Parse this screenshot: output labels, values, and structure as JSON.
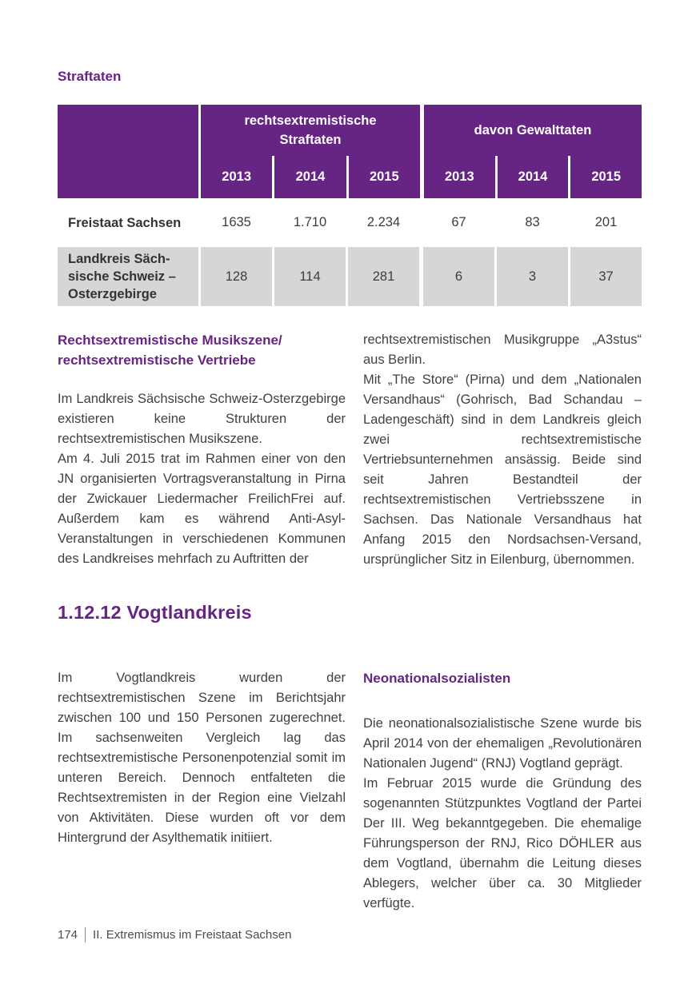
{
  "colors": {
    "accent_purple": "#662483",
    "table_header_bg": "#662483",
    "shaded_row_bg": "#d6d6d6",
    "body_text": "#414141",
    "footer_text": "#4c4c4c"
  },
  "straftaten_section": {
    "heading": "Straftaten",
    "table": {
      "col_groups": [
        {
          "title": "rechtsextremistische\nStraftaten",
          "years": [
            "2013",
            "2014",
            "2015"
          ]
        },
        {
          "title": "davon Gewalttaten",
          "years": [
            "2013",
            "2014",
            "2015"
          ]
        }
      ],
      "rows": [
        {
          "label": "Freistaat Sachsen",
          "values": [
            "1635",
            "1.710",
            "2.234",
            "67",
            "83",
            "201"
          ]
        },
        {
          "label": "Landkreis Säch-\nsische Schweiz –\nOsterzgebirge",
          "values": [
            "128",
            "114",
            "281",
            "6",
            "3",
            "37"
          ]
        }
      ]
    }
  },
  "musikszene_section": {
    "left": {
      "heading": "Rechtsextremistische Musikszene/\nrechtsextremistische Vertriebe",
      "paragraphs": [
        "Im Landkreis Sächsische Schweiz-Osterzgebirge existieren keine Strukturen der rechtsextremistischen Musikszene.",
        "Am 4. Juli 2015 trat im Rahmen einer von den JN organisierten Vortragsveranstaltung in Pirna der Zwickauer Liedermacher FreilichFrei auf. Außerdem kam es während Anti-Asyl-Veranstaltungen in verschiedenen Kommunen des Landkreises mehrfach zu Auftritten der"
      ]
    },
    "right": {
      "paragraphs": [
        "rechtsextremistischen Musikgruppe „A3stus“ aus Berlin.",
        "Mit „The Store“ (Pirna) und dem „Nationalen Versandhaus“ (Gohrisch, Bad Schandau – Ladengeschäft) sind in dem Landkreis gleich zwei rechtsextremistische Vertriebsunternehmen ansässig. Beide sind seit Jahren Bestandteil der rechtsextremistischen Vertriebsszene in Sachsen. Das Nationale Versandhaus hat Anfang 2015 den Nordsachsen-Versand, ursprünglicher Sitz in Eilenburg, übernommen."
      ]
    }
  },
  "vogtland_section": {
    "heading": "1.12.12 Vogtlandkreis",
    "left": {
      "paragraphs": [
        "Im Vogtlandkreis wurden der rechtsextremistischen Szene im Berichtsjahr zwischen 100 und 150 Personen zugerechnet. Im sachsenweiten Vergleich lag das rechtsextremistische Personenpotenzial somit im unteren Bereich. Dennoch entfalteten die Rechtsextremisten in der Region eine Vielzahl von Aktivitäten. Diese wurden oft vor dem Hintergrund der Asylthematik initiiert."
      ]
    },
    "right": {
      "heading": "Neonationalsozialisten",
      "paragraphs": [
        "Die neonationalsozialistische Szene wurde bis April 2014 von der ehemaligen „Revolutionären Nationalen Jugend“ (RNJ) Vogtland geprägt.",
        "Im Februar 2015 wurde die Gründung des sogenannten Stützpunktes Vogtland der Partei Der III. Weg bekanntgegeben. Die ehemalige Führungsperson der RNJ, Rico DÖHLER aus dem Vogtland, übernahm die Leitung dieses Ablegers, welcher über ca. 30 Mitglieder verfügte."
      ]
    }
  },
  "footer": {
    "page_number": "174",
    "chapter": "II. Extremismus im Freistaat Sachsen"
  }
}
